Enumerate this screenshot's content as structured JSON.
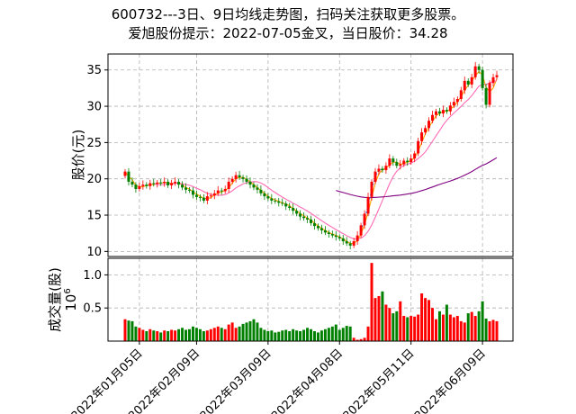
{
  "title_line1": "600732---3日、9日均线走势图，扫码关注获取更多股票。",
  "title_line2": "爱旭股份提示：2022-07-05金叉，当日股价：34.28",
  "chart_data": [
    {
      "type": "candlestick",
      "ylabel": "股价(元)",
      "ylim": [
        9.3,
        37.2
      ],
      "yticks": [
        10,
        15,
        20,
        25,
        30,
        35
      ],
      "grid": true,
      "colors": {
        "up": "#ff0000",
        "down": "#008000",
        "ma3": "#ffa500",
        "ma9": "#ff69b4",
        "ma_long": "#800080",
        "ma_short": "#1e90ff"
      },
      "close": [
        21.0,
        19.6,
        19.2,
        18.6,
        19.0,
        19.2,
        19.0,
        19.4,
        19.3,
        19.5,
        19.4,
        19.6,
        19.1,
        19.4,
        19.6,
        19.2,
        18.8,
        18.5,
        18.4,
        17.8,
        17.5,
        17.4,
        17.0,
        17.6,
        17.7,
        18.0,
        18.4,
        18.3,
        18.6,
        19.6,
        20.0,
        20.5,
        20.2,
        20.0,
        19.6,
        19.2,
        18.8,
        18.5,
        18.0,
        17.6,
        17.3,
        17.0,
        16.9,
        16.7,
        16.6,
        16.2,
        16.0,
        15.6,
        15.2,
        14.8,
        14.6,
        14.4,
        13.9,
        13.5,
        13.2,
        12.9,
        12.6,
        12.4,
        12.2,
        12.0,
        11.8,
        11.4,
        11.1,
        10.8,
        11.4,
        12.2,
        13.6,
        15.2,
        17.5,
        19.6,
        21.0,
        21.4,
        21.2,
        21.8,
        22.8,
        22.3,
        21.8,
        22.0,
        22.5,
        22.3,
        22.8,
        23.5,
        25.2,
        26.4,
        27.0,
        28.0,
        28.8,
        29.3,
        29.0,
        29.5,
        29.3,
        30.1,
        30.6,
        31.0,
        32.2,
        33.5,
        33.0,
        34.0,
        35.5,
        35.0,
        32.5,
        30.2,
        33.2,
        34.0,
        34.28
      ],
      "ma3": [
        21.0,
        20.3,
        19.9,
        19.1,
        18.9,
        18.9,
        19.1,
        19.2,
        19.2,
        19.4,
        19.4,
        19.5,
        19.4,
        19.4,
        19.4,
        19.4,
        19.2,
        18.8,
        18.6,
        18.2,
        17.9,
        17.6,
        17.3,
        17.3,
        17.4,
        17.8,
        18.0,
        18.2,
        18.4,
        18.8,
        19.4,
        20.0,
        20.2,
        20.2,
        19.9,
        19.6,
        19.2,
        18.8,
        18.4,
        18.0,
        17.6,
        17.3,
        17.1,
        16.9,
        16.7,
        16.5,
        16.3,
        15.9,
        15.6,
        15.2,
        14.9,
        14.6,
        14.3,
        13.9,
        13.5,
        13.2,
        12.9,
        12.6,
        12.4,
        12.2,
        12.0,
        11.7,
        11.4,
        11.1,
        11.1,
        11.5,
        12.4,
        13.7,
        15.4,
        17.4,
        19.4,
        20.7,
        21.2,
        21.5,
        21.9,
        22.3,
        22.3,
        22.0,
        22.1,
        22.3,
        22.5,
        22.9,
        23.8,
        25.0,
        26.2,
        27.1,
        27.9,
        28.7,
        29.0,
        29.3,
        29.3,
        29.6,
        30.0,
        30.6,
        31.3,
        32.2,
        32.9,
        33.5,
        34.2,
        34.8,
        34.3,
        32.6,
        32.0,
        32.5,
        33.8
      ]
    },
    {
      "type": "bar",
      "ylabel": "成交量(股)",
      "ylabel_exponent": "10",
      "ylabel_exponent_power": "6",
      "ylim": [
        0,
        1.25
      ],
      "yticks": [
        0.5,
        1.0
      ],
      "ytick_labels": [
        "0.5",
        "1.0"
      ],
      "grid": true,
      "xtick_labels": [
        "2022年01月05日",
        "2022年02月09日",
        "2022年03月09日",
        "2022年04月08日",
        "2022年05月11日",
        "2022年06月09日"
      ],
      "xtick_index": [
        4,
        20,
        40,
        60,
        80,
        100
      ],
      "values": [
        0.33,
        0.31,
        0.3,
        0.22,
        0.2,
        0.17,
        0.15,
        0.18,
        0.16,
        0.15,
        0.13,
        0.16,
        0.15,
        0.17,
        0.16,
        0.18,
        0.2,
        0.17,
        0.18,
        0.22,
        0.2,
        0.18,
        0.15,
        0.16,
        0.18,
        0.2,
        0.22,
        0.2,
        0.18,
        0.25,
        0.28,
        0.2,
        0.22,
        0.26,
        0.28,
        0.3,
        0.33,
        0.28,
        0.2,
        0.17,
        0.15,
        0.16,
        0.13,
        0.14,
        0.16,
        0.17,
        0.15,
        0.18,
        0.16,
        0.15,
        0.17,
        0.2,
        0.18,
        0.15,
        0.13,
        0.16,
        0.18,
        0.2,
        0.22,
        0.25,
        0.17,
        0.2,
        0.23,
        0.22,
        0.05,
        0.02,
        0.03,
        0.05,
        0.22,
        1.18,
        0.65,
        0.68,
        0.75,
        0.55,
        0.5,
        0.42,
        0.45,
        0.6,
        0.38,
        0.36,
        0.38,
        0.37,
        0.4,
        0.72,
        0.65,
        0.62,
        0.5,
        0.33,
        0.45,
        0.4,
        0.55,
        0.4,
        0.36,
        0.38,
        0.3,
        0.28,
        0.42,
        0.44,
        0.38,
        0.45,
        0.6,
        0.34,
        0.3,
        0.32,
        0.3
      ]
    }
  ]
}
